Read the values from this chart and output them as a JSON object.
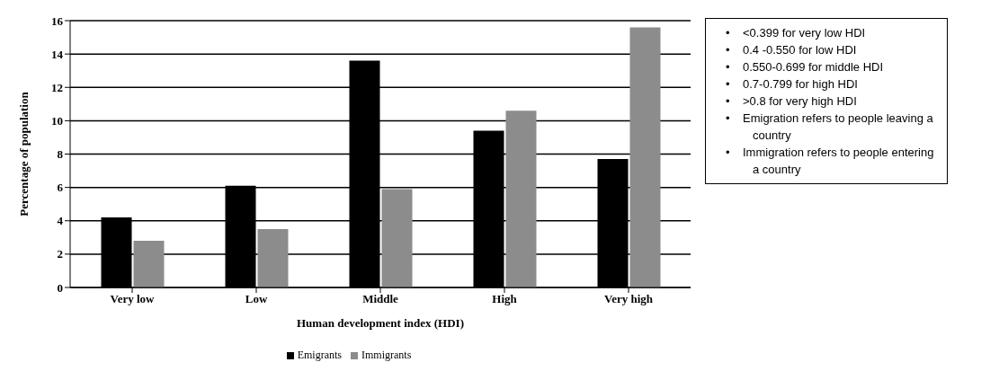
{
  "chart_data": {
    "type": "bar",
    "xlabel": "Human development index (HDI)",
    "ylabel": "Percentage  of population",
    "categories": [
      "Very low",
      "Low",
      "Middle",
      "High",
      "Very high"
    ],
    "series": [
      {
        "name": "Emigrants",
        "color": "#000000",
        "values": [
          4.2,
          6.1,
          13.6,
          9.4,
          7.7
        ]
      },
      {
        "name": "Immigrants",
        "color": "#8c8c8c",
        "values": [
          2.8,
          3.5,
          5.9,
          10.6,
          15.6
        ]
      }
    ],
    "ylim": [
      0,
      16
    ],
    "yticks": [
      0,
      2,
      4,
      6,
      8,
      10,
      12,
      14,
      16
    ],
    "grid": "y",
    "legend": "bottom",
    "annotations": [
      "•    <0.399 for very low HDI",
      "•    0.4 -0.550 for low HDI",
      "•    0.550-0.699 for middle HDI",
      "•    0.7-0.799 for high HDI",
      "•    >0.8 for very high HDI",
      "•    Emigration refers to people leaving a country",
      "•    Immigration refers to people entering a country"
    ]
  }
}
